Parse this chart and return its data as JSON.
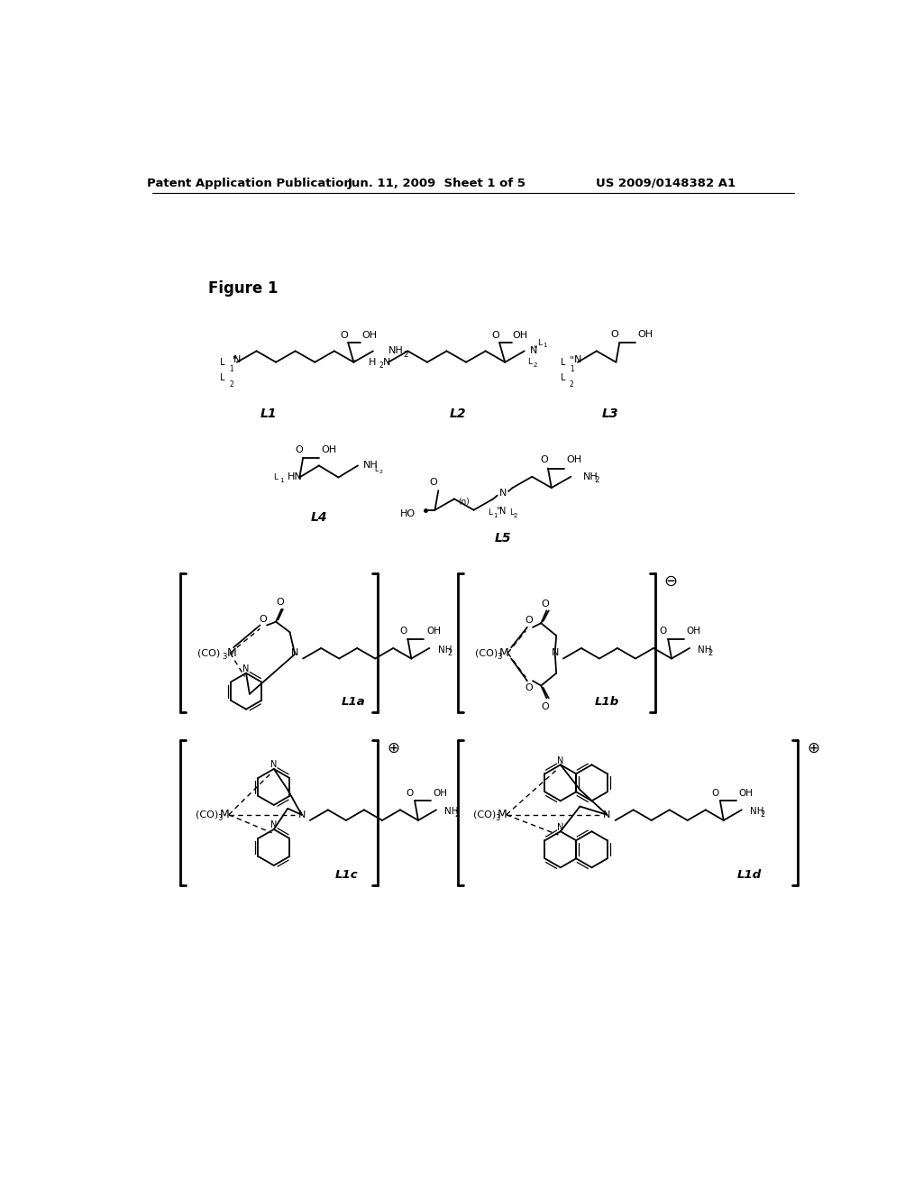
{
  "title_left": "Patent Application Publication",
  "title_middle": "Jun. 11, 2009  Sheet 1 of 5",
  "title_right": "US 2009/0148382 A1",
  "figure_label": "Figure 1",
  "bg_color": "#ffffff"
}
